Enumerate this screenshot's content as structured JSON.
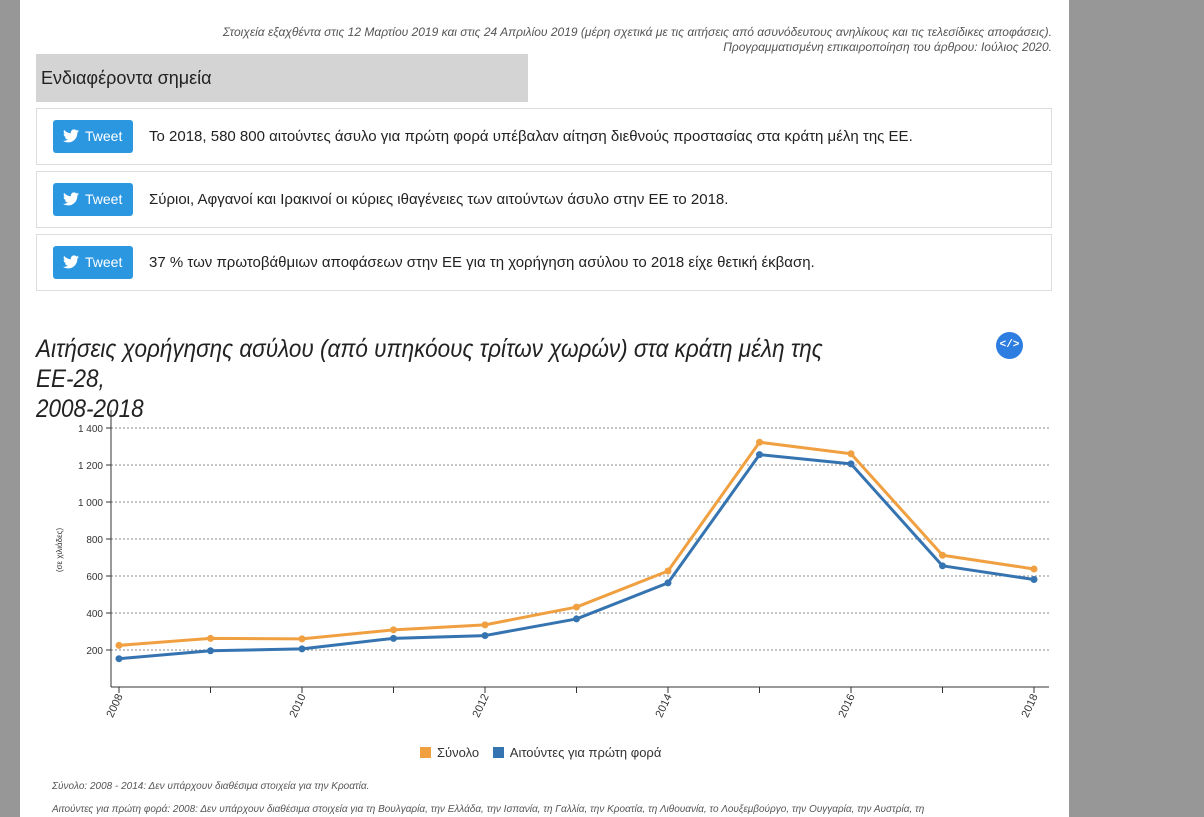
{
  "update_note": {
    "line1": "Στοιχεία εξαχθέντα στις 12 Μαρτίου 2019 και στις 24 Απριλίου 2019 (μέρη σχετικά με τις αιτήσεις από ασυνόδευτους ανηλίκους και τις τελεσίδικες αποφάσεις).",
    "line2": "Προγραμματισμένη επικαιροποίηση του άρθρου: Ιούλιος 2020."
  },
  "section_header": "Ενδιαφέροντα σημεία",
  "points": [
    {
      "tweet_label": "Tweet",
      "text": "Το 2018, 580 800 αιτούντες άσυλο για πρώτη φορά υπέβαλαν αίτηση διεθνούς προστασίας στα κράτη μέλη της ΕΕ."
    },
    {
      "tweet_label": "Tweet",
      "text": "Σύριοι, Αφγανοί και Ιρακινοί οι κύριες ιθαγένειες των αιτούντων άσυλο στην ΕΕ το 2018."
    },
    {
      "tweet_label": "Tweet",
      "text": "37 % των πρωτοβάθμιων αποφάσεων στην ΕΕ για τη χορήγηση ασύλου το 2018 είχε θετική έκβαση."
    }
  ],
  "embed_label": "</>",
  "chart_data": {
    "type": "line",
    "title": "Αιτήσεις χορήγησης ασύλου (από υπηκόους τρίτων χωρών) στα κράτη μέλη της ΕΕ-28, 2008-2018",
    "title_line1": "Αιτήσεις χορήγησης ασύλου (από υπηκόους τρίτων χωρών) στα κράτη μέλη της ΕΕ-28,",
    "title_line2": "2008-2018",
    "ylabel": "(σε χιλιάδες)",
    "xlabel": "",
    "x": [
      2008,
      2009,
      2010,
      2011,
      2012,
      2013,
      2014,
      2015,
      2016,
      2017,
      2018
    ],
    "x_tick_labels": [
      "2008",
      "2010",
      "2012",
      "2014",
      "2016",
      "2018"
    ],
    "y_tick_labels": [
      "200",
      "400",
      "600",
      "800",
      "1 000",
      "1 200",
      "1 400"
    ],
    "ylim": [
      0,
      1450
    ],
    "y_gridlines": [
      200,
      400,
      600,
      800,
      1000,
      1200,
      1400
    ],
    "grid": "dashed horizontal",
    "legend_position": "bottom",
    "series": [
      {
        "name": "Σύνολο",
        "color": "#f0a040",
        "values": [
          225,
          263,
          260,
          309,
          336,
          432,
          627,
          1323,
          1261,
          712,
          638
        ]
      },
      {
        "name": "Αιτούντες για πρώτη φορά",
        "color": "#3574b0",
        "values": [
          153,
          196,
          206,
          263,
          278,
          368,
          563,
          1256,
          1206,
          655,
          581
        ]
      }
    ]
  },
  "footnotes": [
    "Σύνολο: 2008 - 2014: Δεν υπάρχουν διαθέσιμα στοιχεία για την Κροατία.",
    "Αιτούντες για πρώτη φορά: 2008: Δεν υπάρχουν διαθέσιμα στοιχεία για τη Βουλγαρία, την Ελλάδα, την Ισπανία, τη Γαλλία, την Κροατία, τη Λιθουανία, το Λουξεμβούργο, την Ουγγαρία, την Αυστρία, τη"
  ]
}
